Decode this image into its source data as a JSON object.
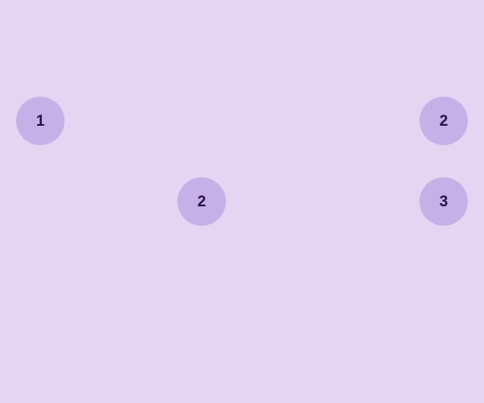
{
  "colors": {
    "background": "#e4d5f3",
    "node_fill": "#c5b0e7",
    "node_text": "#2b1140"
  },
  "nodes": [
    {
      "label": "1"
    },
    {
      "label": "2"
    },
    {
      "label": "2"
    },
    {
      "label": "3"
    }
  ]
}
